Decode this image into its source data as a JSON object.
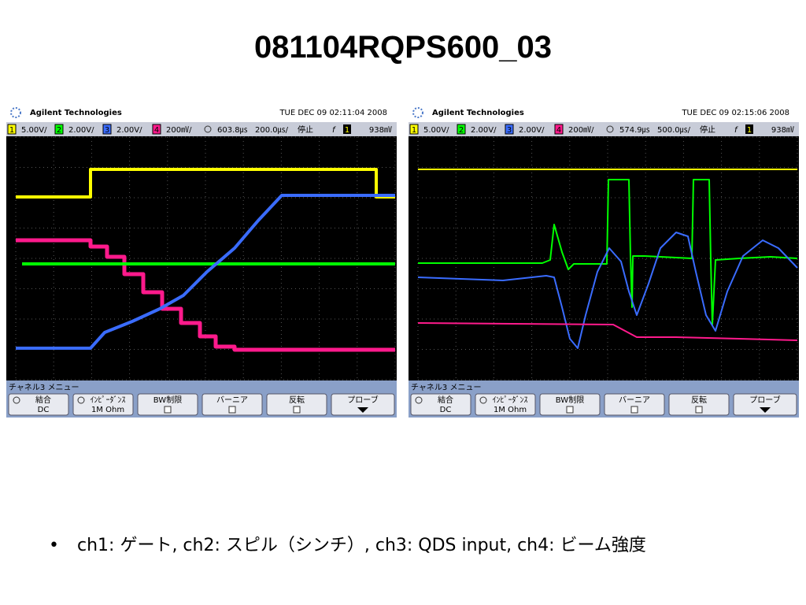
{
  "title": "081104RQPS600_03",
  "scopes": [
    {
      "brand": "Agilent Technologies",
      "timestamp": "TUE DEC 09 02:11:04 2008",
      "channels": [
        {
          "label": "1",
          "scale": "5.00V/"
        },
        {
          "label": "2",
          "scale": "2.00V/"
        },
        {
          "label": "3",
          "scale": "2.00V/"
        },
        {
          "label": "4",
          "scale": "200㎷/"
        }
      ],
      "trigger_delay": "603.8㎲",
      "timebase": "200.0㎲/",
      "run_state": "停止",
      "trigger_slope": "f",
      "trigger_source": "1",
      "trigger_level": "938㎷",
      "menu_title": "チャネル3 メニュー",
      "buttons": [
        {
          "label": "結合",
          "value": "DC"
        },
        {
          "label": "ｲﾝﾋﾟｰﾀﾞﾝｽ",
          "value": "1M Ohm"
        },
        {
          "label": "BW制限"
        },
        {
          "label": "バーニア"
        },
        {
          "label": "反転"
        },
        {
          "label": "プローブ"
        }
      ]
    },
    {
      "brand": "Agilent Technologies",
      "timestamp": "TUE DEC 09 02:15:06 2008",
      "channels": [
        {
          "label": "1",
          "scale": "5.00V/"
        },
        {
          "label": "2",
          "scale": "2.00V/"
        },
        {
          "label": "3",
          "scale": "2.00V/"
        },
        {
          "label": "4",
          "scale": "200㎷/"
        }
      ],
      "trigger_delay": "574.9㎲",
      "timebase": "500.0㎲/",
      "run_state": "停止",
      "trigger_slope": "f",
      "trigger_source": "1",
      "trigger_level": "938㎷",
      "menu_title": "チャネル3 メニュー",
      "buttons": [
        {
          "label": "結合",
          "value": "DC"
        },
        {
          "label": "ｲﾝﾋﾟｰﾀﾞﾝｽ",
          "value": "1M Ohm"
        },
        {
          "label": "BW制限"
        },
        {
          "label": "バーニア"
        },
        {
          "label": "反転"
        },
        {
          "label": "プローブ"
        }
      ]
    }
  ],
  "notes": [
    "ch1: ゲート, ch2: スピル（シンチ）, ch3: QDS input, ch4: ビーム強度"
  ]
}
